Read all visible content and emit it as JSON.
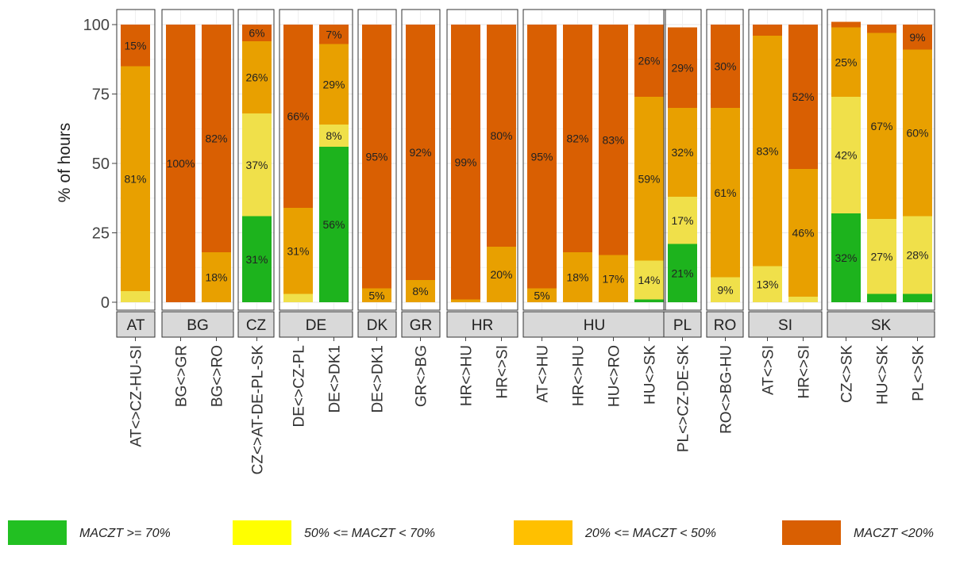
{
  "chart_data": {
    "type": "bar",
    "stacked": true,
    "ylabel": "% of hours",
    "ylim": [
      0,
      100
    ],
    "yticks": [
      "0",
      "25",
      "50",
      "75",
      "100"
    ],
    "grid": true,
    "legend_position": "bottom",
    "colors": {
      "MACZT >= 70%": "#1db31d",
      "50% <= MACZT < 70%": "#f0e04a",
      "20% <= MACZT < 50%": "#e8a000",
      "MACZT <20%": "#d95f02"
    },
    "series_order": [
      "MACZT >= 70%",
      "50% <= MACZT < 70%",
      "20% <= MACZT < 50%",
      "MACZT <20%"
    ],
    "panels": [
      {
        "name": "AT",
        "bars": [
          {
            "label": "AT<>CZ-HU-SI",
            "values": [
              0,
              4,
              81,
              15
            ],
            "labels": [
              "",
              "",
              "81%",
              "15%"
            ]
          }
        ]
      },
      {
        "name": "BG",
        "bars": [
          {
            "label": "BG<>GR",
            "values": [
              0,
              0,
              0,
              100
            ],
            "labels": [
              "",
              "",
              "",
              "100%"
            ]
          },
          {
            "label": "BG<>RO",
            "values": [
              0,
              0,
              18,
              82
            ],
            "labels": [
              "",
              "",
              "18%",
              "82%"
            ]
          }
        ]
      },
      {
        "name": "CZ",
        "bars": [
          {
            "label": "CZ<>AT-DE-PL-SK",
            "values": [
              31,
              37,
              26,
              6
            ],
            "labels": [
              "31%",
              "37%",
              "26%",
              "6%"
            ]
          }
        ]
      },
      {
        "name": "DE",
        "bars": [
          {
            "label": "DE<>CZ-PL",
            "values": [
              0,
              3,
              31,
              66
            ],
            "labels": [
              "",
              "",
              "31%",
              "66%"
            ]
          },
          {
            "label": "DE<>DK1",
            "values": [
              56,
              8,
              29,
              7
            ],
            "labels": [
              "56%",
              "8%",
              "29%",
              "7%"
            ]
          }
        ]
      },
      {
        "name": "DK",
        "bars": [
          {
            "label": "DE<>DK1",
            "values": [
              0,
              0,
              5,
              95
            ],
            "labels": [
              "",
              "",
              "5%",
              "95%"
            ]
          }
        ]
      },
      {
        "name": "GR",
        "bars": [
          {
            "label": "GR<>BG",
            "values": [
              0,
              0,
              8,
              92
            ],
            "labels": [
              "",
              "",
              "8%",
              "92%"
            ]
          }
        ]
      },
      {
        "name": "HR",
        "bars": [
          {
            "label": "HR<>HU",
            "values": [
              0,
              0,
              1,
              99
            ],
            "labels": [
              "",
              "",
              "",
              "99%"
            ]
          },
          {
            "label": "HR<>SI",
            "values": [
              0,
              0,
              20,
              80
            ],
            "labels": [
              "",
              "",
              "20%",
              "80%"
            ]
          }
        ]
      },
      {
        "name": "HU",
        "bars": [
          {
            "label": "AT<>HU",
            "values": [
              0,
              0,
              5,
              95
            ],
            "labels": [
              "",
              "",
              "5%",
              "95%"
            ]
          },
          {
            "label": "HR<>HU",
            "values": [
              0,
              0,
              18,
              82
            ],
            "labels": [
              "",
              "",
              "18%",
              "82%"
            ]
          },
          {
            "label": "HU<>RO",
            "values": [
              0,
              0,
              17,
              83
            ],
            "labels": [
              "",
              "",
              "17%",
              "83%"
            ]
          },
          {
            "label": "HU<>SK",
            "values": [
              1,
              14,
              59,
              26
            ],
            "labels": [
              "",
              "14%",
              "59%",
              "26%"
            ]
          }
        ]
      },
      {
        "name": "PL",
        "bars": [
          {
            "label": "PL<>CZ-DE-SK",
            "values": [
              21,
              17,
              32,
              29
            ],
            "labels": [
              "21%",
              "17%",
              "32%",
              "29%"
            ]
          }
        ]
      },
      {
        "name": "RO",
        "bars": [
          {
            "label": "RO<>BG-HU",
            "values": [
              0,
              9,
              61,
              30
            ],
            "labels": [
              "",
              "9%",
              "61%",
              "30%"
            ]
          }
        ]
      },
      {
        "name": "SI",
        "bars": [
          {
            "label": "AT<>SI",
            "values": [
              0,
              13,
              83,
              4
            ],
            "labels": [
              "",
              "13%",
              "83%",
              ""
            ]
          },
          {
            "label": "HR<>SI",
            "values": [
              0,
              2,
              46,
              52
            ],
            "labels": [
              "",
              "",
              "46%",
              "52%"
            ]
          }
        ]
      },
      {
        "name": "SK",
        "bars": [
          {
            "label": "CZ<>SK",
            "values": [
              32,
              42,
              25,
              2
            ],
            "labels": [
              "32%",
              "42%",
              "25%",
              ""
            ]
          },
          {
            "label": "HU<>SK",
            "values": [
              3,
              27,
              67,
              3
            ],
            "labels": [
              "",
              "27%",
              "67%",
              ""
            ]
          },
          {
            "label": "PL<>SK",
            "values": [
              3,
              28,
              60,
              9
            ],
            "labels": [
              "",
              "28%",
              "60%",
              "9%"
            ]
          }
        ]
      }
    ]
  },
  "legend": [
    {
      "label": "MACZT >= 70%",
      "color": "#22c022"
    },
    {
      "label": "50% <= MACZT < 70%",
      "color": "#ffff00"
    },
    {
      "label": "20% <= MACZT < 50%",
      "color": "#ffc000"
    },
    {
      "label": "MACZT <20%",
      "color": "#d95f02"
    }
  ]
}
